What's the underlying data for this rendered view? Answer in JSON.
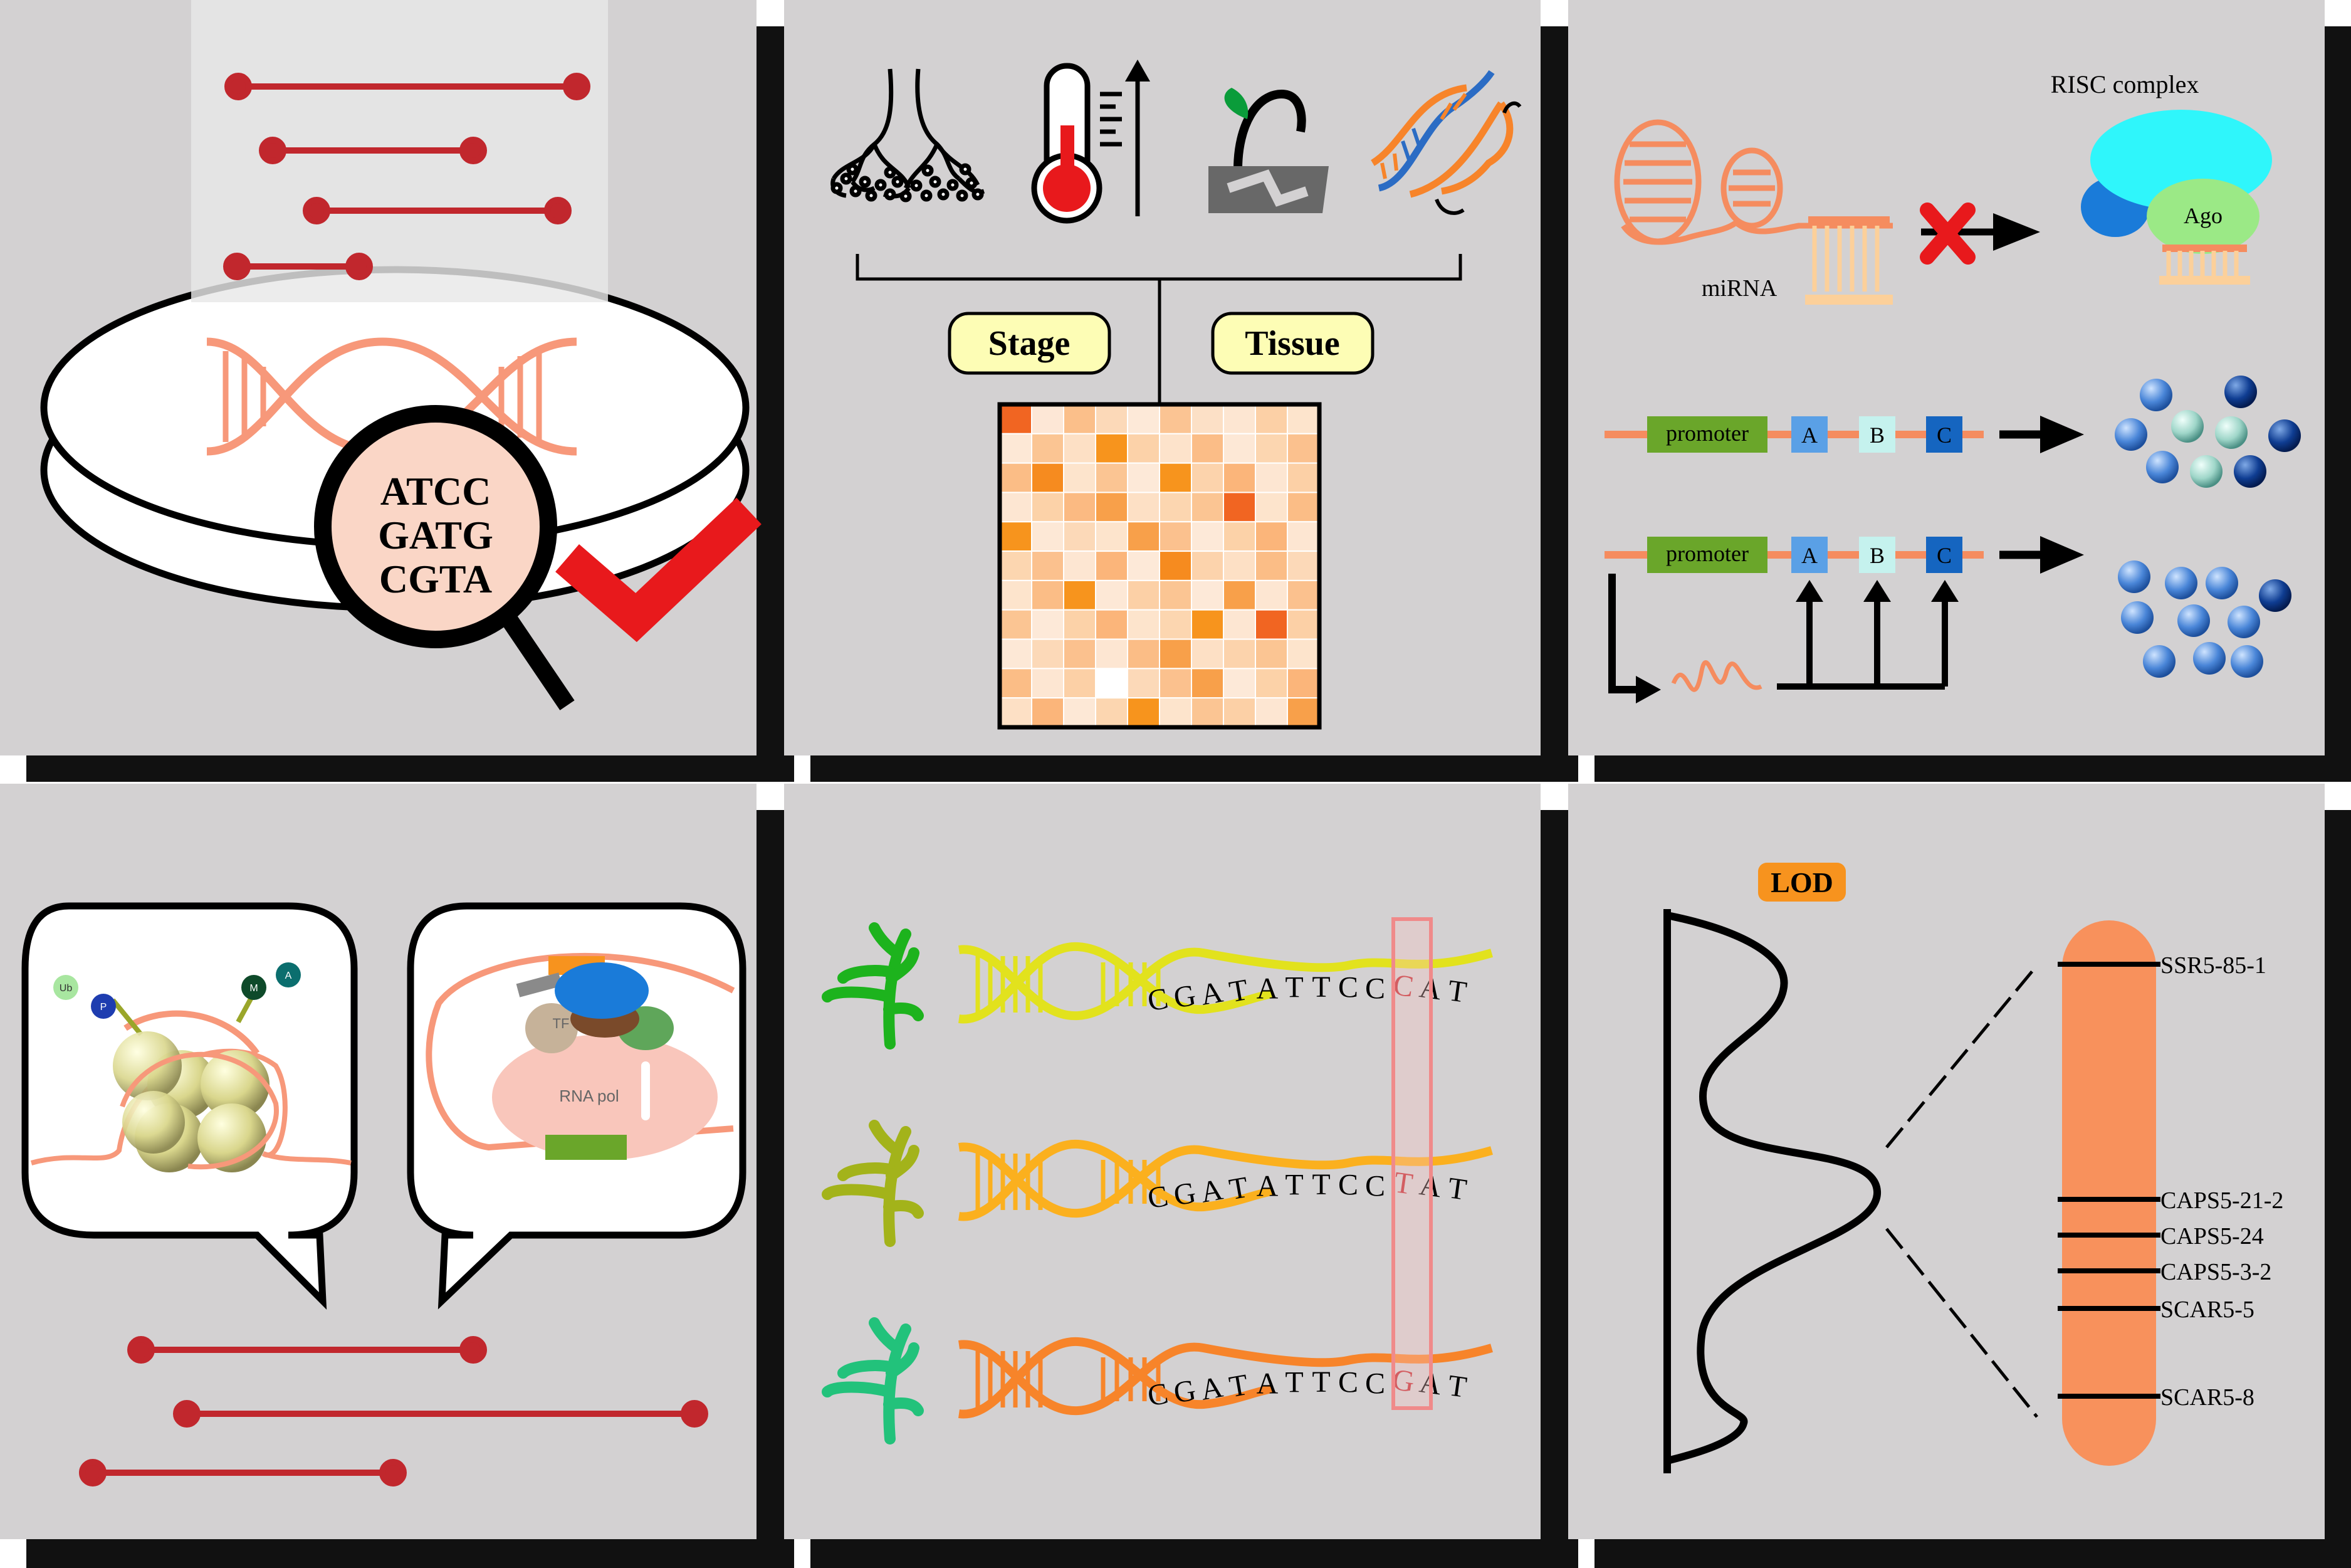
{
  "colors": {
    "panel_bg": "#d3d1d2",
    "panel_shadow": "#111111",
    "red_line": "#c1272d",
    "salmon": "#f7987a",
    "orange": "#f58c5f",
    "check_red": "#e8191c",
    "yellow_label": "#fdfdb5",
    "lod_label": "#f7931e",
    "promoter_green": "#6aa62a"
  },
  "panel1": {
    "magnifier_lines": [
      "ATCC",
      "GATG",
      "CGTA"
    ]
  },
  "panel2": {
    "stage_label": "Stage",
    "tissue_label": "Tissue",
    "icons": [
      "roots-icon",
      "thermometer-up-icon",
      "seedling-stress-icon",
      "dna-rotate-icon"
    ],
    "heatmap": [
      [
        "#f16522",
        "#fde7d6",
        "#fbbf8a",
        "#fcd9b8",
        "#fde9d8",
        "#fbc493",
        "#fce0c6",
        "#fde6d2",
        "#fcd0a6",
        "#fde4cc"
      ],
      [
        "#fde8d6",
        "#fbc593",
        "#fde0c5",
        "#f7941d",
        "#fcd2a9",
        "#fde3cb",
        "#fbbd87",
        "#fde8d6",
        "#fcd6b0",
        "#fbc18e"
      ],
      [
        "#fbbd86",
        "#f68b1f",
        "#fde4cc",
        "#fbc593",
        "#fde9d8",
        "#f7941d",
        "#fcd3ac",
        "#fbb57a",
        "#fde6d2",
        "#fcd0a6"
      ],
      [
        "#fde6d2",
        "#fcd2a8",
        "#fbba82",
        "#f8a04a",
        "#fde0c5",
        "#fcd6b0",
        "#fbc593",
        "#f16522",
        "#fde4cc",
        "#fbbd86"
      ],
      [
        "#f7941d",
        "#fde8d6",
        "#fcd9b8",
        "#fde4cc",
        "#f8a04a",
        "#fbc18e",
        "#fde9d8",
        "#fcd2a8",
        "#fbb57a",
        "#fde6d2"
      ],
      [
        "#fcd6b0",
        "#fbc18e",
        "#fde6d2",
        "#fbb57a",
        "#fde9d8",
        "#f68b1f",
        "#fcd3ac",
        "#fde0c5",
        "#fbbd86",
        "#fcd9b8"
      ],
      [
        "#fde4cc",
        "#fbbd86",
        "#f7941d",
        "#fde8d6",
        "#fcd0a6",
        "#fbc593",
        "#fde9d8",
        "#f8a04a",
        "#fde6d2",
        "#fbc18e"
      ],
      [
        "#fbc593",
        "#fde9d8",
        "#fcd2a8",
        "#fbb57a",
        "#fde4cc",
        "#fcd6b0",
        "#f7941d",
        "#fde6d2",
        "#f16522",
        "#fcd0a6"
      ],
      [
        "#fde8d6",
        "#fcd9b8",
        "#fbc18e",
        "#fde6d2",
        "#fbbd86",
        "#f8a04a",
        "#fde0c5",
        "#fcd3ac",
        "#fbc593",
        "#fde4cc"
      ],
      [
        "#fbbd86",
        "#fde6d2",
        "#fcd0a6",
        "#ffffff",
        "#fcd9b8",
        "#fbc18e",
        "#f8a04a",
        "#fde9d8",
        "#fcd2a8",
        "#fbb57a"
      ],
      [
        "#fde0c5",
        "#fbb57a",
        "#fde8d6",
        "#fcd6b0",
        "#f7941d",
        "#fde4cc",
        "#fbc593",
        "#fcd0a6",
        "#fde6d2",
        "#f8a04a"
      ]
    ]
  },
  "panel3": {
    "risc_label": "RISC complex",
    "ago_label": "Ago",
    "mirna_label": "miRNA",
    "promoter_label": "promoter",
    "genes": [
      "A",
      "B",
      "C"
    ],
    "gene_colors": [
      "#5aa0e6",
      "#c5f2ee",
      "#1565c0"
    ]
  },
  "panel4": {
    "nucleosome_marks": [
      "Ub",
      "P",
      "M",
      "A"
    ],
    "tf_label": "TF",
    "rnapol_label": "RNA pol"
  },
  "panel5": {
    "sequences": [
      {
        "prefix": "CGATATTCC",
        "snp": "C",
        "suffix": "AT",
        "helix_color": "#e2e21d",
        "plant_color": "#1db31d"
      },
      {
        "prefix": "CGATATTCC",
        "snp": "T",
        "suffix": "AT",
        "helix_color": "#fbb01e",
        "plant_color": "#a3b31a"
      },
      {
        "prefix": "CGATATTCC",
        "snp": "G",
        "suffix": "AT",
        "helix_color": "#f7842a",
        "plant_color": "#22c27b"
      }
    ]
  },
  "panel6": {
    "lod_label": "LOD",
    "markers": [
      "SSR5-85-1",
      "CAPS5-21-2",
      "CAPS5-24",
      "CAPS5-3-2",
      "SCAR5-5",
      "SCAR5-8"
    ]
  }
}
